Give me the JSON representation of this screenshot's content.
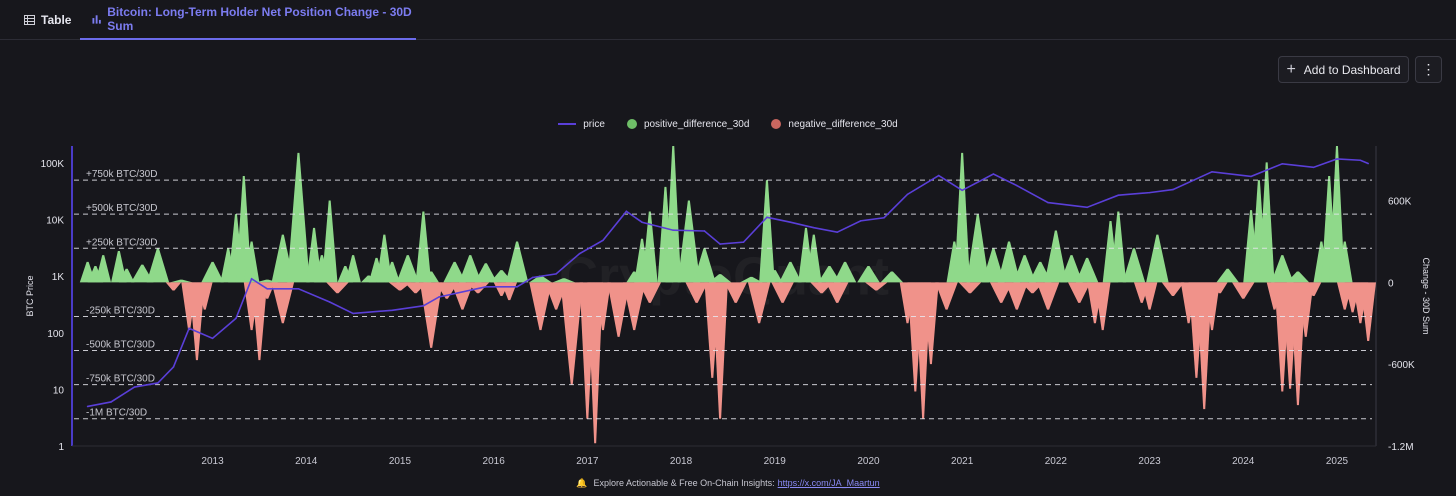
{
  "tabs": {
    "table_label": "Table",
    "chart_label": "Bitcoin: Long-Term Holder Net Position Change - 30D Sum"
  },
  "toolbar": {
    "add_label": "Add to Dashboard",
    "more_label": "⋮"
  },
  "footer": {
    "text": "Explore Actionable & Free On-Chain Insights:",
    "link": "https://x.com/JA_Maartun"
  },
  "watermark": "CryptoQuant",
  "colors": {
    "price": "#5a3fd8",
    "positive": "#8fd98a",
    "negative": "#f0928a"
  },
  "chart_data": {
    "type": "area",
    "legend": [
      "price",
      "positive_difference_30d",
      "negative_difference_30d"
    ],
    "legend_position": "top-center",
    "y_left": {
      "label": "BTC Price",
      "scale": "log",
      "range": [
        1,
        200000
      ],
      "ticks": [
        1,
        10,
        100,
        1000,
        10000,
        100000
      ],
      "tick_labels": [
        "1",
        "10",
        "100",
        "1K",
        "10K",
        "100K"
      ]
    },
    "y_right": {
      "label": "Change - 30D Sum",
      "range": [
        -1200000,
        1000000
      ],
      "ticks": [
        -1200000,
        -600000,
        0,
        600000
      ],
      "tick_labels": [
        "-1.2M",
        "-600K",
        "0",
        "600K"
      ]
    },
    "x_axis": {
      "range": [
        "2012-01",
        "2025-12"
      ],
      "ticks": [
        "2013",
        "2014",
        "2015",
        "2016",
        "2017",
        "2018",
        "2019",
        "2020",
        "2021",
        "2022",
        "2023",
        "2024",
        "2025"
      ]
    },
    "reference_lines": [
      {
        "value": 750000,
        "label": "+750k BTC/30D"
      },
      {
        "value": 500000,
        "label": "+500k BTC/30D"
      },
      {
        "value": 250000,
        "label": "+250k BTC/30D"
      },
      {
        "value": -250000,
        "label": "-250k BTC/30D"
      },
      {
        "value": -500000,
        "label": "-500k BTC/30D"
      },
      {
        "value": -750000,
        "label": "-750k BTC/30D"
      },
      {
        "value": -1000000,
        "label": "-1M BTC/30D"
      }
    ],
    "series": [
      {
        "name": "price",
        "points": [
          [
            "2012-03",
            5
          ],
          [
            "2012-06",
            6
          ],
          [
            "2012-09",
            11
          ],
          [
            "2012-12",
            13
          ],
          [
            "2013-02",
            25
          ],
          [
            "2013-04",
            120
          ],
          [
            "2013-07",
            80
          ],
          [
            "2013-10",
            180
          ],
          [
            "2013-12",
            900
          ],
          [
            "2014-02",
            600
          ],
          [
            "2014-06",
            600
          ],
          [
            "2014-10",
            350
          ],
          [
            "2015-01",
            220
          ],
          [
            "2015-06",
            250
          ],
          [
            "2015-10",
            300
          ],
          [
            "2015-12",
            430
          ],
          [
            "2016-06",
            650
          ],
          [
            "2016-10",
            650
          ],
          [
            "2016-12",
            950
          ],
          [
            "2017-03",
            1100
          ],
          [
            "2017-06",
            2500
          ],
          [
            "2017-09",
            4300
          ],
          [
            "2017-12",
            14000
          ],
          [
            "2018-02",
            9000
          ],
          [
            "2018-06",
            6500
          ],
          [
            "2018-10",
            6300
          ],
          [
            "2018-12",
            3700
          ],
          [
            "2019-03",
            4000
          ],
          [
            "2019-06",
            11000
          ],
          [
            "2019-09",
            9000
          ],
          [
            "2019-12",
            7200
          ],
          [
            "2020-03",
            6000
          ],
          [
            "2020-06",
            9500
          ],
          [
            "2020-09",
            10800
          ],
          [
            "2020-12",
            28000
          ],
          [
            "2021-04",
            60000
          ],
          [
            "2021-07",
            33000
          ],
          [
            "2021-11",
            64000
          ],
          [
            "2022-02",
            40000
          ],
          [
            "2022-06",
            20000
          ],
          [
            "2022-11",
            16500
          ],
          [
            "2023-03",
            27000
          ],
          [
            "2023-07",
            30000
          ],
          [
            "2023-10",
            34000
          ],
          [
            "2024-03",
            70000
          ],
          [
            "2024-08",
            58000
          ],
          [
            "2024-12",
            97000
          ],
          [
            "2025-04",
            84000
          ],
          [
            "2025-07",
            118000
          ],
          [
            "2025-10",
            112000
          ],
          [
            "2025-11",
            98000
          ]
        ]
      },
      {
        "name": "positive_difference_30d",
        "points": [
          [
            "2012-03",
            150000
          ],
          [
            "2012-04",
            120000
          ],
          [
            "2012-05",
            200000
          ],
          [
            "2012-07",
            230000
          ],
          [
            "2012-08",
            100000
          ],
          [
            "2012-10",
            130000
          ],
          [
            "2012-12",
            250000
          ],
          [
            "2013-03",
            20000
          ],
          [
            "2013-07",
            150000
          ],
          [
            "2013-09",
            250000
          ],
          [
            "2013-10",
            500000
          ],
          [
            "2013-11",
            780000
          ],
          [
            "2013-12",
            300000
          ],
          [
            "2014-02",
            20000
          ],
          [
            "2014-04",
            350000
          ],
          [
            "2014-06",
            950000
          ],
          [
            "2014-08",
            400000
          ],
          [
            "2014-09",
            200000
          ],
          [
            "2014-10",
            600000
          ],
          [
            "2014-12",
            120000
          ],
          [
            "2015-01",
            200000
          ],
          [
            "2015-03",
            50000
          ],
          [
            "2015-04",
            180000
          ],
          [
            "2015-05",
            350000
          ],
          [
            "2015-06",
            150000
          ],
          [
            "2015-08",
            200000
          ],
          [
            "2015-10",
            520000
          ],
          [
            "2015-11",
            80000
          ],
          [
            "2016-02",
            150000
          ],
          [
            "2016-04",
            200000
          ],
          [
            "2016-06",
            140000
          ],
          [
            "2016-08",
            90000
          ],
          [
            "2016-10",
            300000
          ],
          [
            "2017-01",
            50000
          ],
          [
            "2017-04",
            30000
          ],
          [
            "2018-01",
            80000
          ],
          [
            "2018-02",
            320000
          ],
          [
            "2018-03",
            520000
          ],
          [
            "2018-05",
            700000
          ],
          [
            "2018-06",
            1000000
          ],
          [
            "2018-08",
            600000
          ],
          [
            "2018-10",
            250000
          ],
          [
            "2018-12",
            60000
          ],
          [
            "2019-04",
            40000
          ],
          [
            "2019-06",
            750000
          ],
          [
            "2019-07",
            90000
          ],
          [
            "2019-09",
            150000
          ],
          [
            "2019-11",
            400000
          ],
          [
            "2019-12",
            350000
          ],
          [
            "2020-02",
            120000
          ],
          [
            "2020-04",
            150000
          ],
          [
            "2020-07",
            120000
          ],
          [
            "2020-10",
            80000
          ],
          [
            "2021-06",
            300000
          ],
          [
            "2021-07",
            950000
          ],
          [
            "2021-09",
            500000
          ],
          [
            "2021-11",
            250000
          ],
          [
            "2022-01",
            300000
          ],
          [
            "2022-03",
            200000
          ],
          [
            "2022-05",
            150000
          ],
          [
            "2022-07",
            380000
          ],
          [
            "2022-09",
            200000
          ],
          [
            "2022-11",
            180000
          ],
          [
            "2023-02",
            450000
          ],
          [
            "2023-03",
            520000
          ],
          [
            "2023-05",
            250000
          ],
          [
            "2023-08",
            350000
          ],
          [
            "2024-05",
            100000
          ],
          [
            "2024-08",
            530000
          ],
          [
            "2024-09",
            750000
          ],
          [
            "2024-10",
            880000
          ],
          [
            "2024-12",
            200000
          ],
          [
            "2025-02",
            80000
          ],
          [
            "2025-05",
            300000
          ],
          [
            "2025-06",
            780000
          ],
          [
            "2025-07",
            1000000
          ],
          [
            "2025-08",
            300000
          ]
        ]
      },
      {
        "name": "negative_difference_30d",
        "points": [
          [
            "2013-02",
            -60000
          ],
          [
            "2013-04",
            -350000
          ],
          [
            "2013-05",
            -570000
          ],
          [
            "2013-06",
            -200000
          ],
          [
            "2013-12",
            -350000
          ],
          [
            "2014-01",
            -570000
          ],
          [
            "2014-02",
            -120000
          ],
          [
            "2014-04",
            -300000
          ],
          [
            "2014-11",
            -80000
          ],
          [
            "2015-07",
            -60000
          ],
          [
            "2015-09",
            -80000
          ],
          [
            "2015-11",
            -480000
          ],
          [
            "2016-01",
            -120000
          ],
          [
            "2016-03",
            -200000
          ],
          [
            "2016-05",
            -80000
          ],
          [
            "2016-08",
            -100000
          ],
          [
            "2016-09",
            -130000
          ],
          [
            "2017-01",
            -350000
          ],
          [
            "2017-03",
            -200000
          ],
          [
            "2017-05",
            -750000
          ],
          [
            "2017-07",
            -1000000
          ],
          [
            "2017-08",
            -1180000
          ],
          [
            "2017-09",
            -350000
          ],
          [
            "2017-11",
            -400000
          ],
          [
            "2018-01",
            -350000
          ],
          [
            "2018-03",
            -150000
          ],
          [
            "2018-09",
            -150000
          ],
          [
            "2018-11",
            -700000
          ],
          [
            "2018-12",
            -1000000
          ],
          [
            "2019-02",
            -150000
          ],
          [
            "2019-05",
            -300000
          ],
          [
            "2019-08",
            -150000
          ],
          [
            "2020-01",
            -80000
          ],
          [
            "2020-03",
            -150000
          ],
          [
            "2020-08",
            -60000
          ],
          [
            "2020-12",
            -300000
          ],
          [
            "2021-01",
            -800000
          ],
          [
            "2021-02",
            -1000000
          ],
          [
            "2021-03",
            -600000
          ],
          [
            "2021-05",
            -200000
          ],
          [
            "2021-08",
            -80000
          ],
          [
            "2021-12",
            -150000
          ],
          [
            "2022-02",
            -200000
          ],
          [
            "2022-04",
            -80000
          ],
          [
            "2022-06",
            -200000
          ],
          [
            "2022-10",
            -150000
          ],
          [
            "2022-12",
            -300000
          ],
          [
            "2023-01",
            -350000
          ],
          [
            "2023-06",
            -150000
          ],
          [
            "2023-07",
            -200000
          ],
          [
            "2023-10",
            -100000
          ],
          [
            "2023-12",
            -300000
          ],
          [
            "2024-01",
            -700000
          ],
          [
            "2024-02",
            -930000
          ],
          [
            "2024-03",
            -350000
          ],
          [
            "2024-04",
            -80000
          ],
          [
            "2024-07",
            -120000
          ],
          [
            "2024-11",
            -200000
          ],
          [
            "2024-12",
            -800000
          ],
          [
            "2025-01",
            -780000
          ],
          [
            "2025-02",
            -900000
          ],
          [
            "2025-03",
            -400000
          ],
          [
            "2025-04",
            -100000
          ],
          [
            "2025-08",
            -200000
          ],
          [
            "2025-09",
            -220000
          ],
          [
            "2025-10",
            -300000
          ],
          [
            "2025-11",
            -430000
          ]
        ]
      }
    ]
  }
}
